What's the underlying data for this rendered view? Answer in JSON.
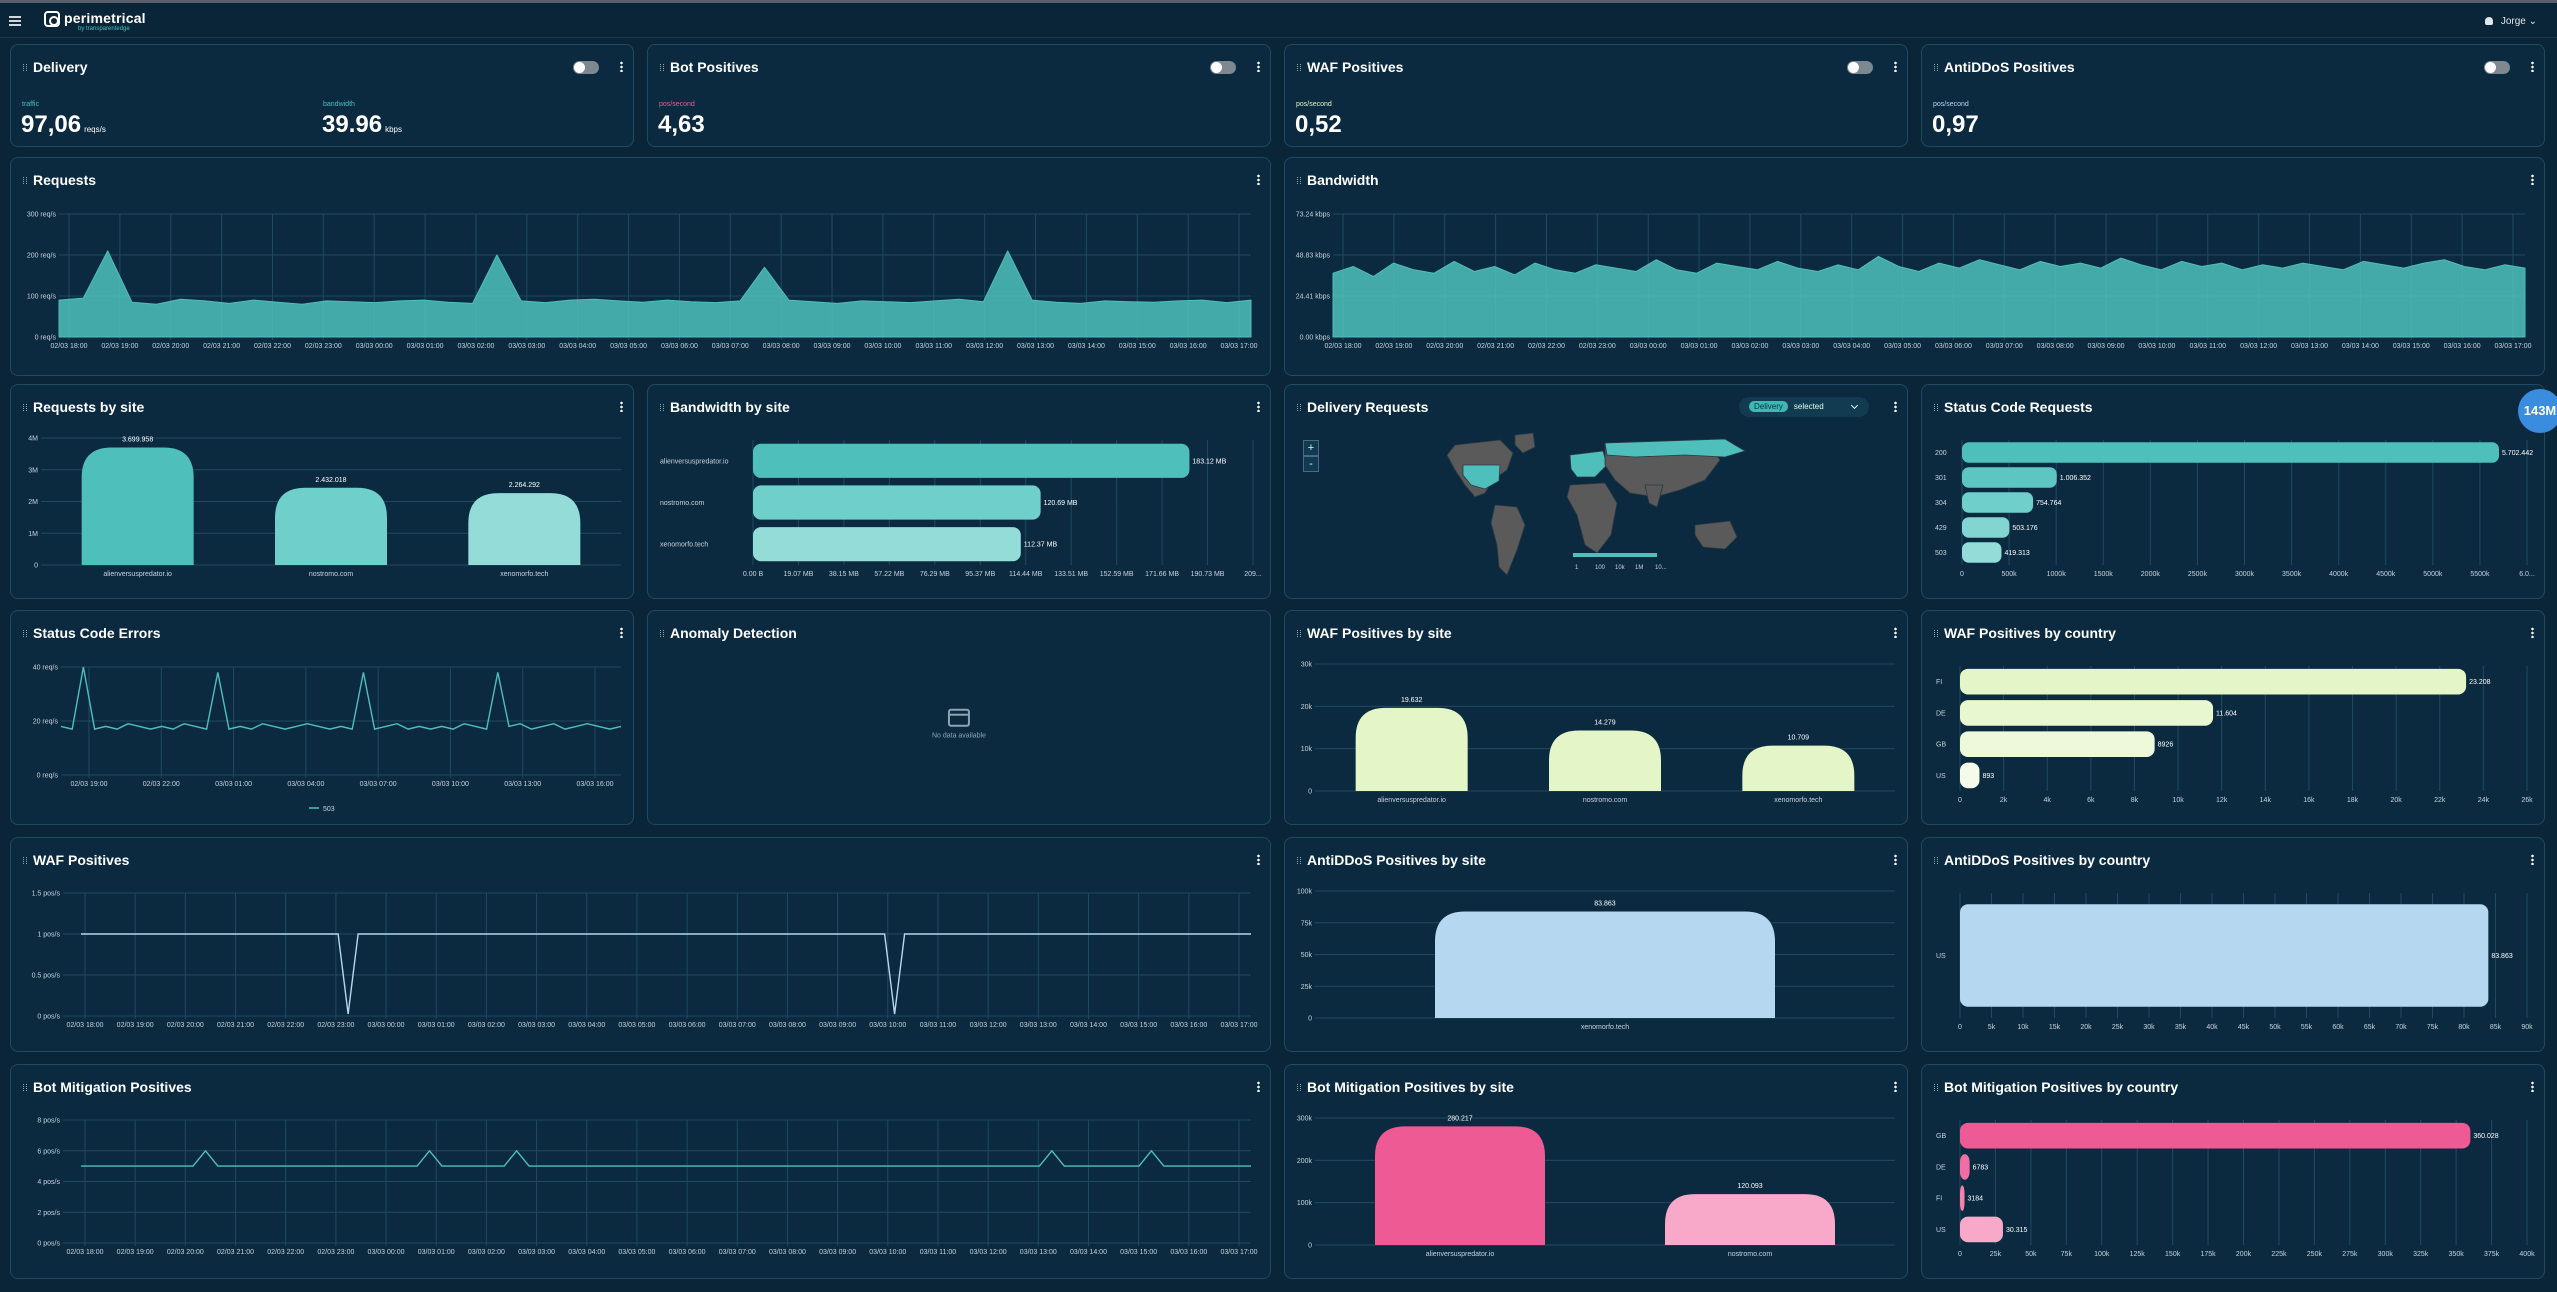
{
  "header": {
    "app_name": "perimetrical",
    "app_sub": "by transparentedge",
    "user": "Jorge"
  },
  "colors": {
    "teal": "#4fbfbc",
    "lightgreen": "#e4f5c7",
    "lightblue": "#b5d7ef",
    "pink": "#ee5a94",
    "pinklight": "#f8a8c8"
  },
  "metrics": {
    "delivery": {
      "title": "Delivery",
      "l1": "traffic",
      "v1": "97,06",
      "u1": "reqs/s",
      "l2": "bandwidth",
      "v2": "39.96",
      "u2": "kbps"
    },
    "bot": {
      "title": "Bot Positives",
      "l1": "pos/second",
      "v1": "4,63"
    },
    "waf": {
      "title": "WAF Positives",
      "l1": "pos/second",
      "v1": "0,52"
    },
    "antiddos": {
      "title": "AntiDDoS Positives",
      "l1": "pos/second",
      "v1": "0,97"
    }
  },
  "time_labels": [
    "02/03 18:00",
    "02/03 19:00",
    "02/03 20:00",
    "02/03 21:00",
    "02/03 22:00",
    "02/03 23:00",
    "03/03 00:00",
    "03/03 01:00",
    "03/03 02:00",
    "03/03 03:00",
    "03/03 04:00",
    "03/03 05:00",
    "03/03 06:00",
    "03/03 07:00",
    "03/03 08:00",
    "03/03 09:00",
    "03/03 10:00",
    "03/03 11:00",
    "03/03 12:00",
    "03/03 13:00",
    "03/03 14:00",
    "03/03 15:00",
    "03/03 16:00",
    "03/03 17:00"
  ],
  "titles": {
    "requests": "Requests",
    "bandwidth": "Bandwidth",
    "req_site": "Requests by site",
    "bw_site": "Bandwidth by site",
    "delivery_req": "Delivery Requests",
    "status_req": "Status Code Requests",
    "status_err": "Status Code Errors",
    "anomaly": "Anomaly Detection",
    "waf_site": "WAF Positives by site",
    "waf_country": "WAF Positives by country",
    "waf_pos": "WAF Positives",
    "ddos_site": "AntiDDoS Positives by site",
    "ddos_country": "AntiDDoS Positives by country",
    "bot_pos": "Bot Mitigation Positives",
    "bot_site": "Bot Mitigation Positives by site",
    "bot_country": "Bot Mitigation Positives by country"
  },
  "delivery_map": {
    "tag": "Delivery",
    "selected": "selected",
    "zoom_in": "+",
    "zoom_out": "-",
    "legend": [
      "1",
      "100",
      "10k",
      "1M",
      "10..."
    ]
  },
  "anomaly": {
    "nodata": "No data available"
  },
  "badge": "143M",
  "chart_data": [
    {
      "id": "requests",
      "type": "area",
      "title": "Requests",
      "yticks": [
        "0 req/s",
        "100 req/s",
        "200 req/s",
        "300 req/s"
      ],
      "ylim": [
        0,
        300
      ],
      "values": [
        90,
        95,
        210,
        85,
        80,
        92,
        88,
        82,
        90,
        85,
        80,
        88,
        86,
        84,
        88,
        90,
        85,
        82,
        200,
        88,
        84,
        90,
        92,
        88,
        85,
        90,
        86,
        84,
        88,
        170,
        90,
        86,
        82,
        88,
        86,
        84,
        88,
        92,
        86,
        210,
        90,
        85,
        82,
        88,
        86,
        85,
        88,
        90,
        84,
        90
      ]
    },
    {
      "id": "bandwidth",
      "type": "area",
      "title": "Bandwidth",
      "yticks": [
        "0.00 kbps",
        "24.41 kbps",
        "48.83 kbps",
        "73.24 kbps"
      ],
      "ylim": [
        0,
        73.24
      ],
      "values": [
        38,
        42,
        36,
        44,
        40,
        38,
        45,
        39,
        42,
        37,
        44,
        40,
        38,
        43,
        41,
        39,
        46,
        40,
        38,
        44,
        42,
        40,
        45,
        41,
        39,
        43,
        40,
        48,
        42,
        39,
        44,
        41,
        46,
        43,
        40,
        45,
        42,
        44,
        41,
        47,
        43,
        40,
        45,
        42,
        44,
        40,
        43,
        41,
        44,
        42,
        40,
        45,
        43,
        41,
        44,
        46,
        42,
        40,
        43,
        41
      ]
    },
    {
      "id": "req_site",
      "type": "bar",
      "categories": [
        "alienversuspredator.io",
        "nostromo.com",
        "xenomorfo.tech"
      ],
      "values": [
        3699958,
        2432018,
        2264292
      ],
      "labels": [
        "3.699.958",
        "2.432.018",
        "2.264.292"
      ],
      "yticks": [
        "0",
        "1M",
        "2M",
        "3M",
        "4M"
      ],
      "ylim": [
        0,
        4000000
      ]
    },
    {
      "id": "bw_site",
      "type": "bar",
      "orientation": "horizontal",
      "categories": [
        "alienversuspredator.io",
        "nostromo.com",
        "xenomorfo.tech"
      ],
      "values": [
        183.12,
        120.69,
        112.37
      ],
      "labels": [
        "183.12 MB",
        "120.69 MB",
        "112.37 MB"
      ],
      "xticks": [
        "0.00 B",
        "19.07 MB",
        "38.15 MB",
        "57.22 MB",
        "76.29 MB",
        "95.37 MB",
        "114.44 MB",
        "133.51 MB",
        "152.59 MB",
        "171.66 MB",
        "190.73 MB",
        "209..."
      ],
      "xlim": [
        0,
        209.8
      ]
    },
    {
      "id": "status_req",
      "type": "bar",
      "orientation": "horizontal",
      "categories": [
        "200",
        "301",
        "304",
        "429",
        "503"
      ],
      "values": [
        5702442,
        1006352,
        754764,
        503176,
        419313
      ],
      "labels": [
        "5.702.442",
        "1.006.352",
        "754.764",
        "503.176",
        "419.313"
      ],
      "xticks": [
        "0",
        "500k",
        "1000k",
        "1500k",
        "2000k",
        "2500k",
        "3000k",
        "3500k",
        "4000k",
        "4500k",
        "5000k",
        "5500k",
        "6.0..."
      ],
      "xlim": [
        0,
        6000000
      ]
    },
    {
      "id": "status_err",
      "type": "line",
      "series": [
        {
          "name": "503",
          "values": [
            18,
            17,
            40,
            17,
            18,
            17,
            19,
            18,
            17,
            18,
            17,
            19,
            18,
            17,
            38,
            17,
            18,
            17,
            19,
            18,
            17,
            18,
            19,
            18,
            17,
            18,
            17,
            38,
            17,
            18,
            19,
            17,
            18,
            17,
            18,
            17,
            19,
            18,
            17,
            38,
            18,
            19,
            17,
            18,
            19,
            17,
            18,
            19,
            18,
            17,
            18
          ]
        }
      ],
      "yticks": [
        "0 req/s",
        "20 req/s",
        "40 req/s"
      ],
      "ylim": [
        0,
        40
      ],
      "xticks": [
        "02/03 19:00",
        "02/03 22:00",
        "03/03 01:00",
        "03/03 04:00",
        "03/03 07:00",
        "03/03 10:00",
        "03/03 13:00",
        "03/03 16:00"
      ]
    },
    {
      "id": "waf_site",
      "type": "bar",
      "categories": [
        "alienversuspredator.io",
        "nostromo.com",
        "xenomorfo.tech"
      ],
      "values": [
        19632,
        14279,
        10709
      ],
      "labels": [
        "19.632",
        "14.279",
        "10.709"
      ],
      "yticks": [
        "0",
        "10k",
        "20k",
        "30k"
      ],
      "ylim": [
        0,
        30000
      ]
    },
    {
      "id": "waf_country",
      "type": "bar",
      "orientation": "horizontal",
      "categories": [
        "FI",
        "DE",
        "GB",
        "US"
      ],
      "values": [
        23208,
        11604,
        8926,
        893
      ],
      "labels": [
        "23.208",
        "11.604",
        "8926",
        "893"
      ],
      "xticks": [
        "0",
        "2k",
        "4k",
        "6k",
        "8k",
        "10k",
        "12k",
        "14k",
        "16k",
        "18k",
        "20k",
        "22k",
        "24k",
        "26k"
      ],
      "xlim": [
        0,
        26000
      ]
    },
    {
      "id": "waf_pos",
      "type": "line",
      "values": [
        1,
        1,
        1,
        1,
        1,
        1,
        1,
        1,
        1,
        1,
        1,
        1,
        1,
        1,
        1,
        1,
        1,
        1,
        1,
        1,
        1,
        1,
        1,
        1,
        1,
        1,
        1,
        1,
        1,
        1,
        1,
        1,
        1,
        1,
        1,
        1,
        1,
        1,
        1,
        1,
        1,
        1,
        1,
        1,
        1,
        1,
        1,
        1,
        1,
        1
      ],
      "dips": [
        0.24,
        0.7
      ],
      "yticks": [
        "0 pos/s",
        "0.5 pos/s",
        "1 pos/s",
        "1.5 pos/s"
      ],
      "ylim": [
        0,
        1.5
      ]
    },
    {
      "id": "ddos_site",
      "type": "bar",
      "categories": [
        "xenomorfo.tech"
      ],
      "values": [
        83863
      ],
      "labels": [
        "83.863"
      ],
      "yticks": [
        "0",
        "25k",
        "50k",
        "75k",
        "100k"
      ],
      "ylim": [
        0,
        100000
      ]
    },
    {
      "id": "ddos_country",
      "type": "bar",
      "orientation": "horizontal",
      "categories": [
        "US"
      ],
      "values": [
        83863
      ],
      "labels": [
        "83.863"
      ],
      "xticks": [
        "0",
        "5k",
        "10k",
        "15k",
        "20k",
        "25k",
        "30k",
        "35k",
        "40k",
        "45k",
        "50k",
        "55k",
        "60k",
        "65k",
        "70k",
        "75k",
        "80k",
        "85k",
        "90k"
      ],
      "xlim": [
        0,
        90000
      ]
    },
    {
      "id": "bot_pos",
      "type": "line",
      "values": [
        5,
        5,
        5,
        5,
        5,
        5,
        5,
        5,
        5,
        5,
        6,
        5,
        5,
        5,
        5,
        5,
        5,
        5,
        5,
        5,
        5,
        5,
        5,
        5,
        5,
        5,
        5,
        5,
        6,
        5,
        5,
        5,
        5,
        5,
        5,
        6,
        5,
        5,
        5,
        5,
        5,
        5,
        5,
        5,
        5,
        5,
        5,
        5,
        5,
        5,
        5,
        5,
        5,
        5,
        5,
        5,
        5,
        5,
        5,
        5,
        5,
        5,
        5,
        5,
        5,
        5,
        5,
        5,
        5,
        5,
        5,
        5,
        5,
        5,
        5,
        5,
        5,
        5,
        6,
        5,
        5,
        5,
        5,
        5,
        5,
        5,
        6,
        5,
        5,
        5,
        5,
        5,
        5,
        5,
        5
      ],
      "yticks": [
        "0 pos/s",
        "2 pos/s",
        "4 pos/s",
        "6 pos/s",
        "8 pos/s"
      ],
      "ylim": [
        0,
        8
      ]
    },
    {
      "id": "bot_site",
      "type": "bar",
      "categories": [
        "alienversuspredator.io",
        "nostromo.com"
      ],
      "values": [
        280217,
        120093
      ],
      "labels": [
        "280.217",
        "120.093"
      ],
      "yticks": [
        "0",
        "100k",
        "200k",
        "300k"
      ],
      "ylim": [
        0,
        300000
      ]
    },
    {
      "id": "bot_country",
      "type": "bar",
      "orientation": "horizontal",
      "categories": [
        "GB",
        "DE",
        "FI",
        "US"
      ],
      "values": [
        360028,
        6783,
        3184,
        30315
      ],
      "labels": [
        "360.028",
        "6783",
        "3184",
        "30.315"
      ],
      "xticks": [
        "0",
        "25k",
        "50k",
        "75k",
        "100k",
        "125k",
        "150k",
        "175k",
        "200k",
        "225k",
        "250k",
        "275k",
        "300k",
        "325k",
        "350k",
        "375k",
        "400k"
      ],
      "xlim": [
        0,
        400000
      ]
    }
  ]
}
